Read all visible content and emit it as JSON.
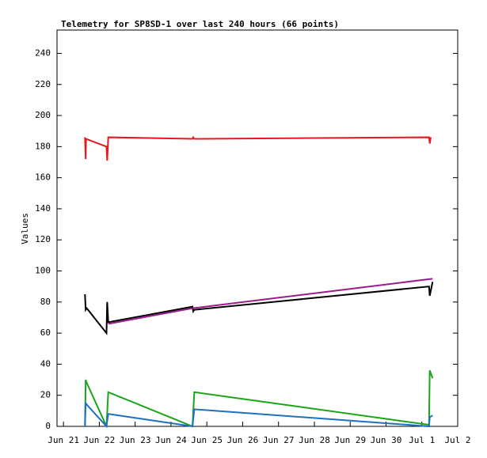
{
  "chart_data": {
    "type": "line",
    "title": "Telemetry for SP8SD-1 over last 240 hours (66 points)",
    "y_label": "Values",
    "xlim": [
      -0.18,
      11
    ],
    "xticks": [
      {
        "value": 0,
        "label": "Jun 21"
      },
      {
        "value": 1,
        "label": "Jun 22"
      },
      {
        "value": 2,
        "label": "Jun 23"
      },
      {
        "value": 3,
        "label": "Jun 24"
      },
      {
        "value": 4,
        "label": "Jun 25"
      },
      {
        "value": 5,
        "label": "Jun 26"
      },
      {
        "value": 6,
        "label": "Jun 27"
      },
      {
        "value": 7,
        "label": "Jun 28"
      },
      {
        "value": 8,
        "label": "Jun 29"
      },
      {
        "value": 9,
        "label": "Jun 30"
      },
      {
        "value": 10,
        "label": "Jul 1"
      },
      {
        "value": 11,
        "label": "Jul 2"
      }
    ],
    "ylim": [
      0,
      255
    ],
    "yticks": [
      0,
      20,
      40,
      60,
      80,
      100,
      120,
      140,
      160,
      180,
      200,
      220,
      240
    ],
    "series": [
      {
        "color": "#e41a1c",
        "x": [
          0.6,
          0.62,
          0.63,
          1.2,
          1.22,
          1.25,
          3.6,
          3.62,
          3.65,
          10.2,
          10.22,
          10.25
        ],
        "values": [
          186,
          172,
          185,
          180,
          171,
          186,
          185,
          186,
          185,
          186,
          182,
          186
        ]
      },
      {
        "color": "#000000",
        "x": [
          0.6,
          0.62,
          0.65,
          1.2,
          1.22,
          1.25,
          3.6,
          3.62,
          3.65,
          10.2,
          10.22,
          10.3
        ],
        "values": [
          85,
          75,
          76,
          60,
          80,
          67,
          77,
          74,
          75,
          90,
          84,
          93
        ]
      },
      {
        "color": "#9b1c8c",
        "x": [
          1.25,
          3.6,
          10.3
        ],
        "values": [
          66,
          76,
          95
        ]
      },
      {
        "color": "#1aa51a",
        "x": [
          0.6,
          0.62,
          0.65,
          1.2,
          1.25,
          3.6,
          3.65,
          10.2,
          10.22,
          10.3
        ],
        "values": [
          0,
          30,
          28,
          0,
          22,
          0,
          22,
          1,
          36,
          31
        ]
      },
      {
        "color": "#1f6fc0",
        "x": [
          0.6,
          0.62,
          0.65,
          1.2,
          1.25,
          3.6,
          3.65,
          10.2,
          10.22,
          10.3
        ],
        "values": [
          0,
          15,
          14,
          0,
          8,
          0,
          11,
          0,
          6,
          7
        ]
      }
    ]
  }
}
